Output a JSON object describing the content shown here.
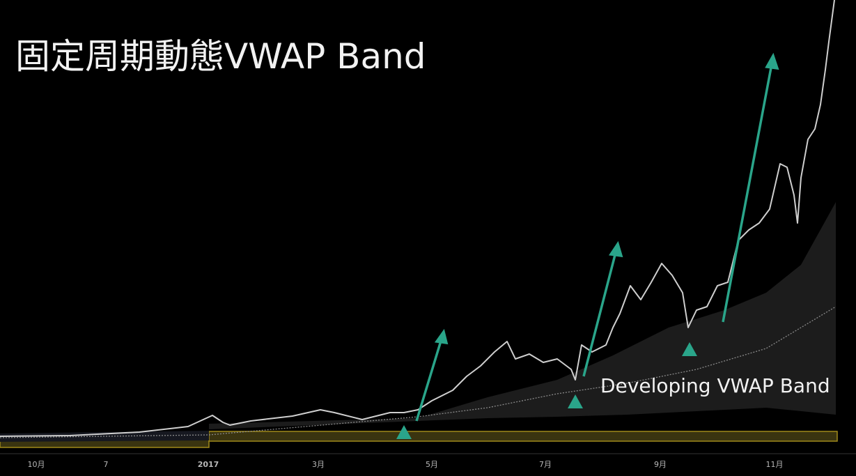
{
  "chart_data": {
    "type": "candlestick",
    "title": "固定周期動態VWAP Band",
    "annotation": "Developing VWAP Band",
    "x_tick_labels": [
      "10月",
      "7",
      "2017",
      "3月",
      "5月",
      "7月",
      "9月",
      "11月"
    ]
  }
}
